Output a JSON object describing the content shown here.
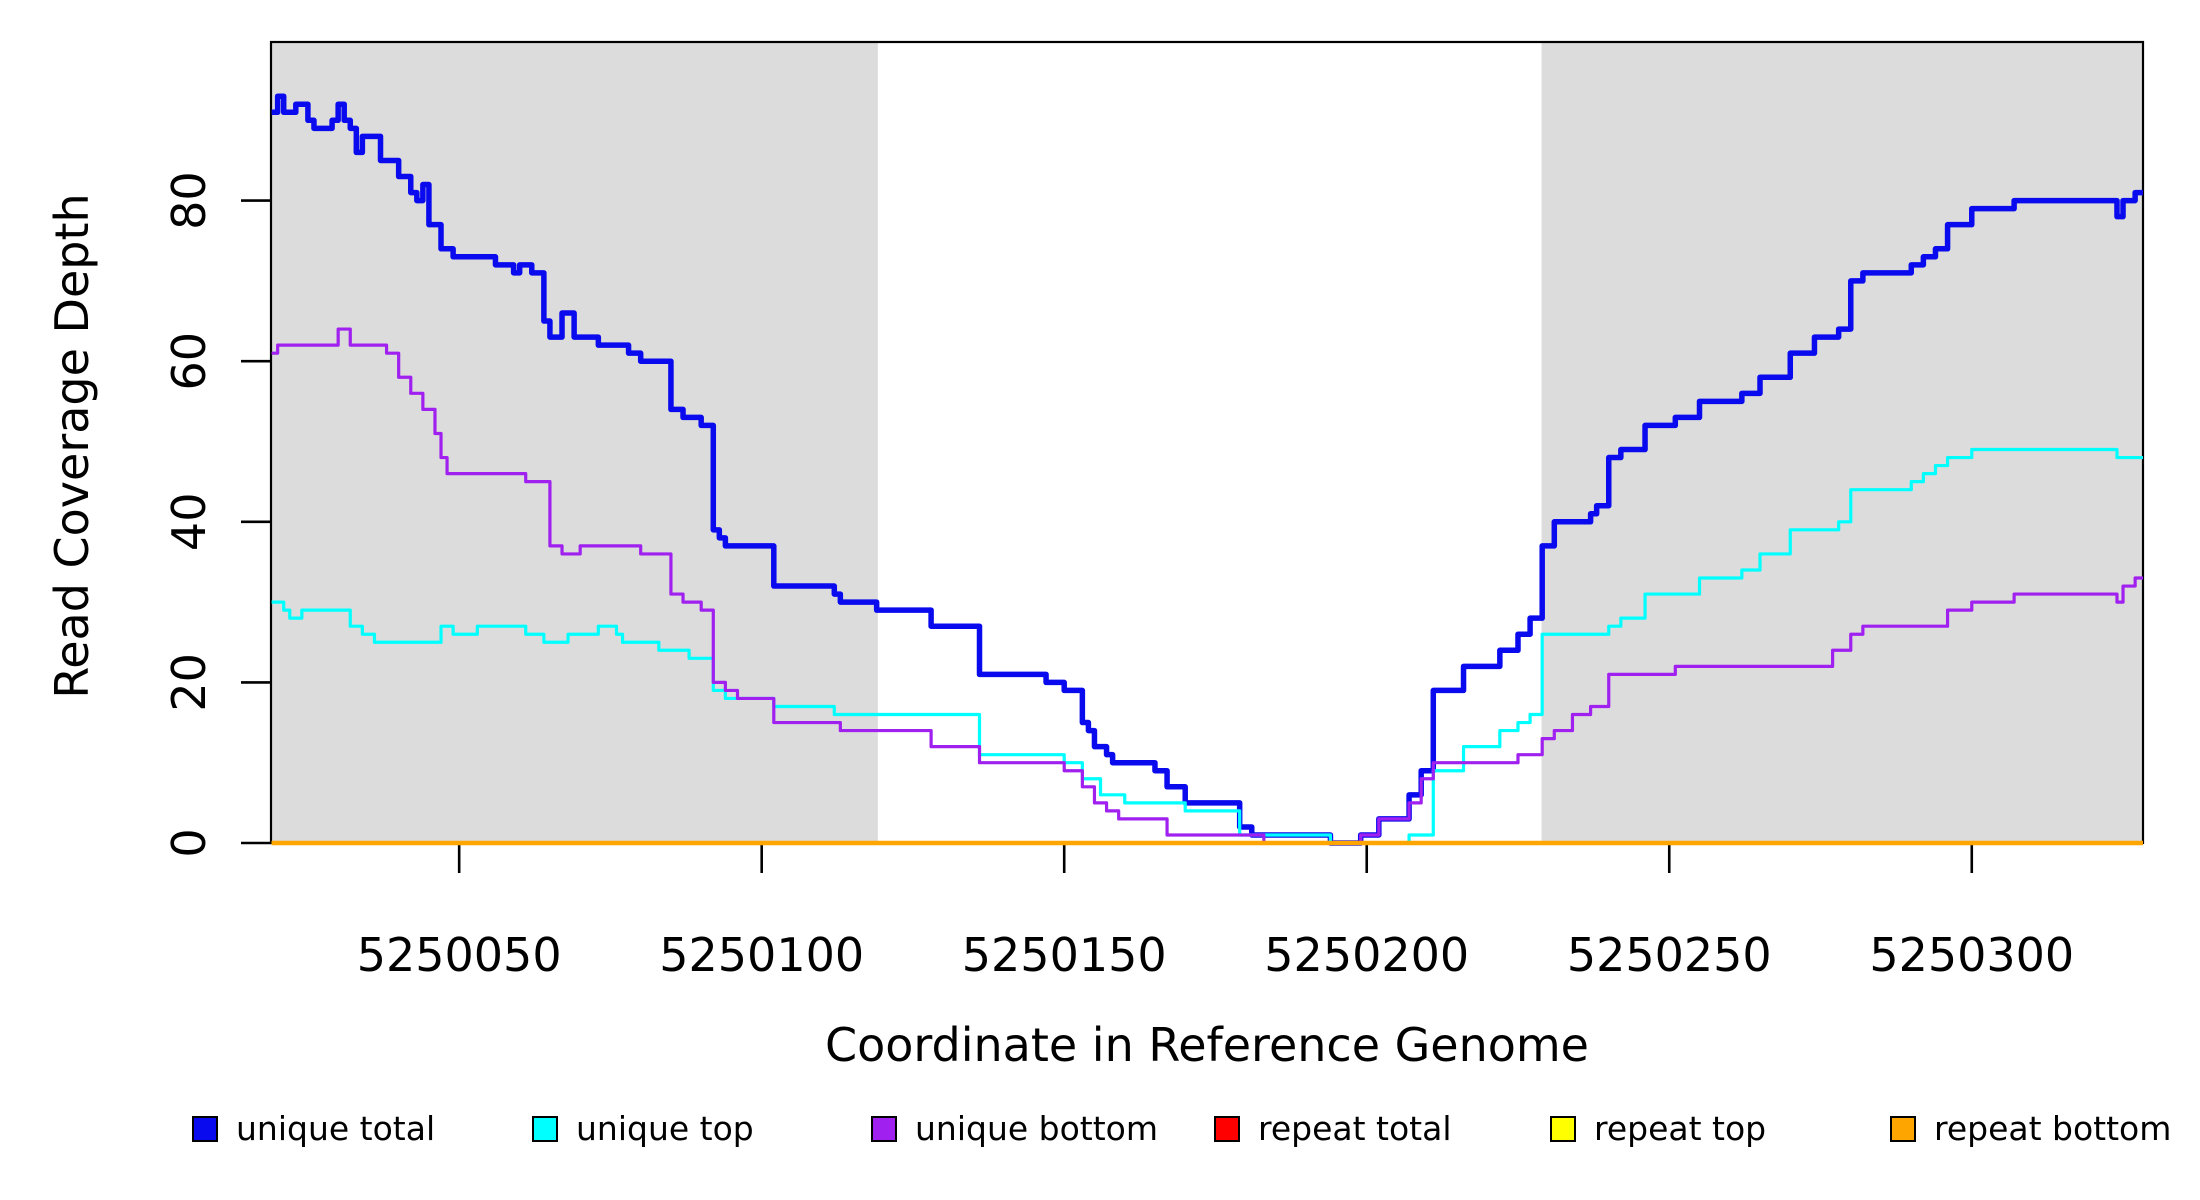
{
  "chart_data": {
    "type": "line",
    "step": true,
    "title": "",
    "xlabel": "Coordinate in Reference Genome",
    "ylabel": "Read Coverage Depth",
    "xlim": [
      5250018.9,
      5250328.3
    ],
    "ylim": [
      0,
      99.75
    ],
    "x_ticks": [
      5250050,
      5250100,
      5250150,
      5250200,
      5250250,
      5250300
    ],
    "y_ticks": [
      0,
      20,
      40,
      60,
      80
    ],
    "grid": false,
    "legend_position": "bottom",
    "background_color": "#ffffff",
    "shaded_region_color": "#DCDCDC",
    "shaded_regions": [
      {
        "x_from": 5250018.9,
        "x_to": 5250119.2
      },
      {
        "x_from": 5250228.9,
        "x_to": 5250328.3
      }
    ],
    "series": [
      {
        "name": "unique total",
        "color": "#0A0AEE",
        "width": 5.5,
        "points": [
          [
            5250019,
            91
          ],
          [
            5250020,
            93
          ],
          [
            5250021,
            91
          ],
          [
            5250023,
            92
          ],
          [
            5250025,
            90
          ],
          [
            5250026,
            89
          ],
          [
            5250029,
            90
          ],
          [
            5250030,
            92
          ],
          [
            5250031,
            90
          ],
          [
            5250032,
            89
          ],
          [
            5250033,
            86
          ],
          [
            5250034,
            88
          ],
          [
            5250037,
            85
          ],
          [
            5250040,
            83
          ],
          [
            5250042,
            81
          ],
          [
            5250043,
            80
          ],
          [
            5250044,
            82
          ],
          [
            5250045,
            77
          ],
          [
            5250047,
            74
          ],
          [
            5250049,
            73
          ],
          [
            5250056,
            72
          ],
          [
            5250059,
            71
          ],
          [
            5250060,
            72
          ],
          [
            5250062,
            71
          ],
          [
            5250064,
            65
          ],
          [
            5250065,
            63
          ],
          [
            5250067,
            66
          ],
          [
            5250069,
            63
          ],
          [
            5250073,
            62
          ],
          [
            5250078,
            61
          ],
          [
            5250080,
            60
          ],
          [
            5250085,
            54
          ],
          [
            5250087,
            53
          ],
          [
            5250090,
            52
          ],
          [
            5250092,
            39
          ],
          [
            5250093,
            38
          ],
          [
            5250094,
            37
          ],
          [
            5250102,
            32
          ],
          [
            5250112,
            31
          ],
          [
            5250113,
            30
          ],
          [
            5250119,
            29
          ],
          [
            5250128,
            27
          ],
          [
            5250136,
            21
          ],
          [
            5250147,
            20
          ],
          [
            5250150,
            19
          ],
          [
            5250153,
            15
          ],
          [
            5250154,
            14
          ],
          [
            5250155,
            12
          ],
          [
            5250157,
            11
          ],
          [
            5250158,
            10
          ],
          [
            5250165,
            9
          ],
          [
            5250167,
            7
          ],
          [
            5250170,
            5
          ],
          [
            5250179,
            2
          ],
          [
            5250181,
            1
          ],
          [
            5250194,
            0
          ],
          [
            5250199,
            1
          ],
          [
            5250202,
            3
          ],
          [
            5250207,
            6
          ],
          [
            5250209,
            9
          ],
          [
            5250211,
            19
          ],
          [
            5250216,
            22
          ],
          [
            5250222,
            24
          ],
          [
            5250225,
            26
          ],
          [
            5250227,
            28
          ],
          [
            5250229,
            37
          ],
          [
            5250231,
            40
          ],
          [
            5250237,
            41
          ],
          [
            5250238,
            42
          ],
          [
            5250240,
            48
          ],
          [
            5250242,
            49
          ],
          [
            5250246,
            52
          ],
          [
            5250251,
            53
          ],
          [
            5250255,
            55
          ],
          [
            5250262,
            56
          ],
          [
            5250265,
            58
          ],
          [
            5250270,
            61
          ],
          [
            5250274,
            63
          ],
          [
            5250278,
            64
          ],
          [
            5250280,
            70
          ],
          [
            5250282,
            71
          ],
          [
            5250290,
            72
          ],
          [
            5250292,
            73
          ],
          [
            5250294,
            74
          ],
          [
            5250296,
            77
          ],
          [
            5250300,
            79
          ],
          [
            5250307,
            80
          ],
          [
            5250324,
            78
          ],
          [
            5250325,
            80
          ],
          [
            5250327,
            81
          ]
        ]
      },
      {
        "name": "unique top",
        "color": "#00FFFF",
        "width": 3.2,
        "points": [
          [
            5250019,
            30
          ],
          [
            5250021,
            29
          ],
          [
            5250022,
            28
          ],
          [
            5250024,
            29
          ],
          [
            5250032,
            27
          ],
          [
            5250034,
            26
          ],
          [
            5250036,
            25
          ],
          [
            5250047,
            27
          ],
          [
            5250049,
            26
          ],
          [
            5250053,
            27
          ],
          [
            5250061,
            26
          ],
          [
            5250064,
            25
          ],
          [
            5250068,
            26
          ],
          [
            5250073,
            27
          ],
          [
            5250076,
            26
          ],
          [
            5250077,
            25
          ],
          [
            5250083,
            24
          ],
          [
            5250088,
            23
          ],
          [
            5250092,
            19
          ],
          [
            5250094,
            18
          ],
          [
            5250102,
            17
          ],
          [
            5250112,
            16
          ],
          [
            5250136,
            11
          ],
          [
            5250150,
            10
          ],
          [
            5250153,
            8
          ],
          [
            5250156,
            6
          ],
          [
            5250160,
            5
          ],
          [
            5250170,
            4
          ],
          [
            5250179,
            1
          ],
          [
            5250194,
            0
          ],
          [
            5250207,
            1
          ],
          [
            5250211,
            9
          ],
          [
            5250216,
            12
          ],
          [
            5250222,
            14
          ],
          [
            5250225,
            15
          ],
          [
            5250227,
            16
          ],
          [
            5250229,
            26
          ],
          [
            5250240,
            27
          ],
          [
            5250242,
            28
          ],
          [
            5250246,
            31
          ],
          [
            5250255,
            33
          ],
          [
            5250262,
            34
          ],
          [
            5250265,
            36
          ],
          [
            5250270,
            39
          ],
          [
            5250278,
            40
          ],
          [
            5250280,
            44
          ],
          [
            5250290,
            45
          ],
          [
            5250292,
            46
          ],
          [
            5250294,
            47
          ],
          [
            5250296,
            48
          ],
          [
            5250300,
            49
          ],
          [
            5250324,
            48
          ]
        ]
      },
      {
        "name": "unique bottom",
        "color": "#A020F0",
        "width": 3.2,
        "points": [
          [
            5250019,
            61
          ],
          [
            5250020,
            62
          ],
          [
            5250030,
            64
          ],
          [
            5250032,
            62
          ],
          [
            5250038,
            61
          ],
          [
            5250040,
            58
          ],
          [
            5250042,
            56
          ],
          [
            5250044,
            54
          ],
          [
            5250046,
            51
          ],
          [
            5250047,
            48
          ],
          [
            5250048,
            46
          ],
          [
            5250061,
            45
          ],
          [
            5250065,
            37
          ],
          [
            5250067,
            36
          ],
          [
            5250070,
            37
          ],
          [
            5250080,
            36
          ],
          [
            5250085,
            31
          ],
          [
            5250087,
            30
          ],
          [
            5250090,
            29
          ],
          [
            5250092,
            20
          ],
          [
            5250094,
            19
          ],
          [
            5250096,
            18
          ],
          [
            5250102,
            15
          ],
          [
            5250113,
            14
          ],
          [
            5250128,
            12
          ],
          [
            5250136,
            10
          ],
          [
            5250150,
            9
          ],
          [
            5250153,
            7
          ],
          [
            5250155,
            5
          ],
          [
            5250157,
            4
          ],
          [
            5250159,
            3
          ],
          [
            5250167,
            1
          ],
          [
            5250183,
            0
          ],
          [
            5250199,
            1
          ],
          [
            5250202,
            3
          ],
          [
            5250207,
            5
          ],
          [
            5250209,
            8
          ],
          [
            5250211,
            10
          ],
          [
            5250225,
            11
          ],
          [
            5250229,
            13
          ],
          [
            5250231,
            14
          ],
          [
            5250234,
            16
          ],
          [
            5250237,
            17
          ],
          [
            5250240,
            21
          ],
          [
            5250251,
            22
          ],
          [
            5250277,
            24
          ],
          [
            5250280,
            26
          ],
          [
            5250282,
            27
          ],
          [
            5250296,
            29
          ],
          [
            5250300,
            30
          ],
          [
            5250307,
            31
          ],
          [
            5250324,
            30
          ],
          [
            5250325,
            32
          ],
          [
            5250327,
            33
          ]
        ]
      },
      {
        "name": "repeat total",
        "color": "#FF0000",
        "width": 3.2,
        "points": [
          [
            5250019,
            0
          ]
        ]
      },
      {
        "name": "repeat top",
        "color": "#FFFF00",
        "width": 3.2,
        "points": [
          [
            5250019,
            0
          ]
        ]
      },
      {
        "name": "repeat bottom",
        "color": "#FFA500",
        "width": 4.5,
        "points": [
          [
            5250019,
            0
          ]
        ]
      }
    ],
    "legend": [
      "unique total",
      "unique top",
      "unique bottom",
      "repeat total",
      "repeat top",
      "repeat bottom"
    ]
  }
}
